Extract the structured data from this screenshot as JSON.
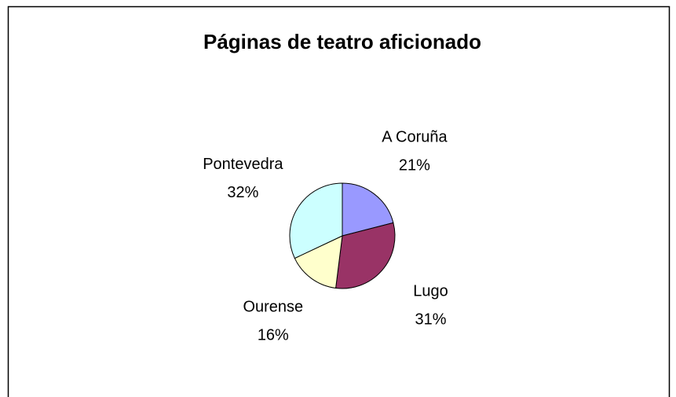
{
  "chart_data": {
    "type": "pie",
    "title": "Páginas de teatro aficionado",
    "categories": [
      "A Coruña",
      "Lugo",
      "Ourense",
      "Pontevedra"
    ],
    "values": [
      21,
      31,
      16,
      32
    ],
    "value_labels": [
      "21%",
      "31%",
      "16%",
      "32%"
    ],
    "colors": [
      "#9999ff",
      "#993366",
      "#ffffcc",
      "#ccffff"
    ]
  }
}
